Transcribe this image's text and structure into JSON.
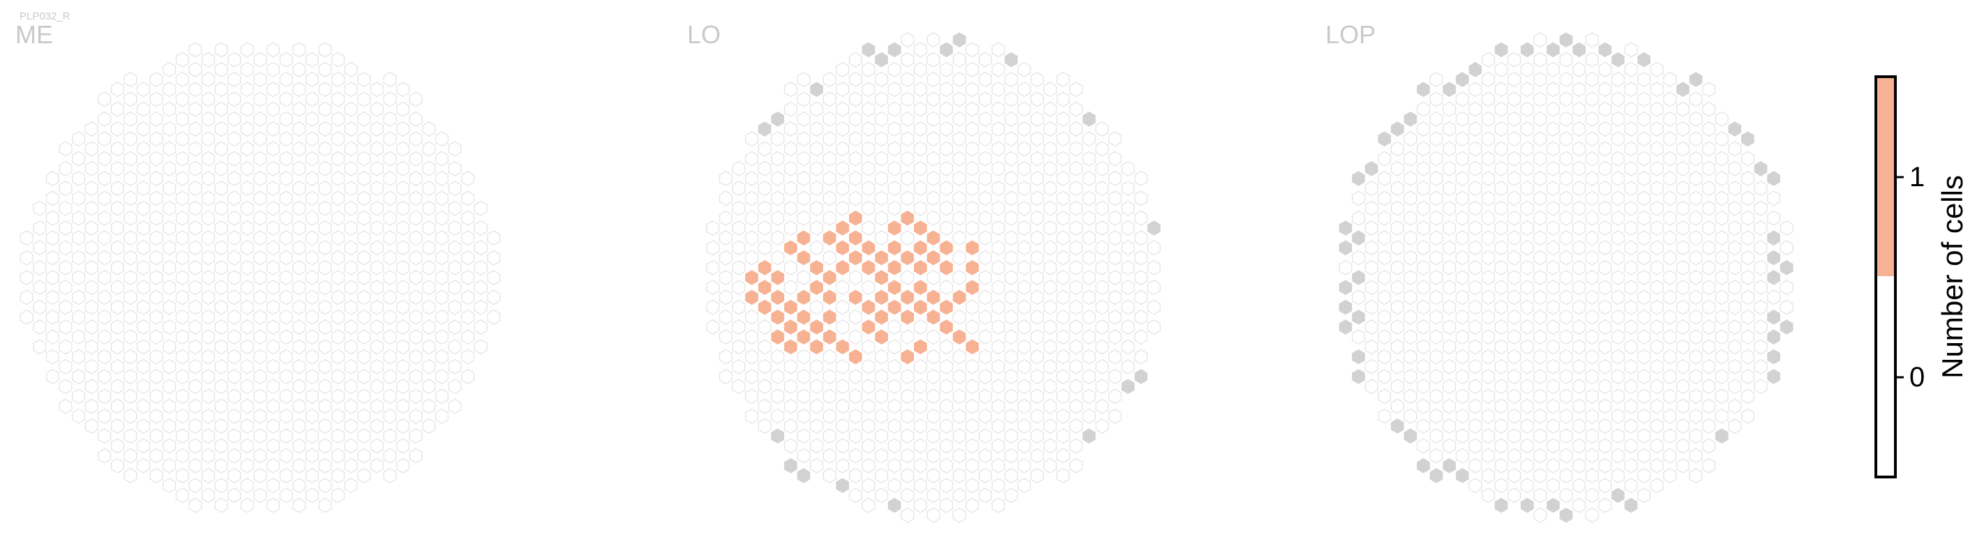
{
  "cell_type": "PLP032_R",
  "chart_data": [
    {
      "type": "heatmap",
      "title": "ME",
      "grid": "hexagonal",
      "cells_with_value_1": 0,
      "edge_columns_shaded_grey": false
    },
    {
      "type": "heatmap",
      "title": "LO",
      "grid": "hexagonal",
      "cells_with_value_1": 75,
      "edge_columns_shaded_grey": true
    },
    {
      "type": "heatmap",
      "title": "LOP",
      "grid": "hexagonal",
      "cells_with_value_1": 0,
      "edge_columns_shaded_grey": true
    }
  ],
  "colorbar": {
    "label": "Number of cells",
    "ticks": [
      "0",
      "1"
    ],
    "range": [
      -0.5,
      1.5
    ],
    "bands": [
      {
        "value": 0,
        "color": "#ffffff"
      },
      {
        "value": 1,
        "color": "#f7b294"
      }
    ]
  },
  "colors": {
    "empty_cell": "#ffffff",
    "cell_outline": "#e4e4e4",
    "edge_cell": "#d2d2d2",
    "count_1": "#f7b294",
    "label_text": "#c9c9c9"
  }
}
